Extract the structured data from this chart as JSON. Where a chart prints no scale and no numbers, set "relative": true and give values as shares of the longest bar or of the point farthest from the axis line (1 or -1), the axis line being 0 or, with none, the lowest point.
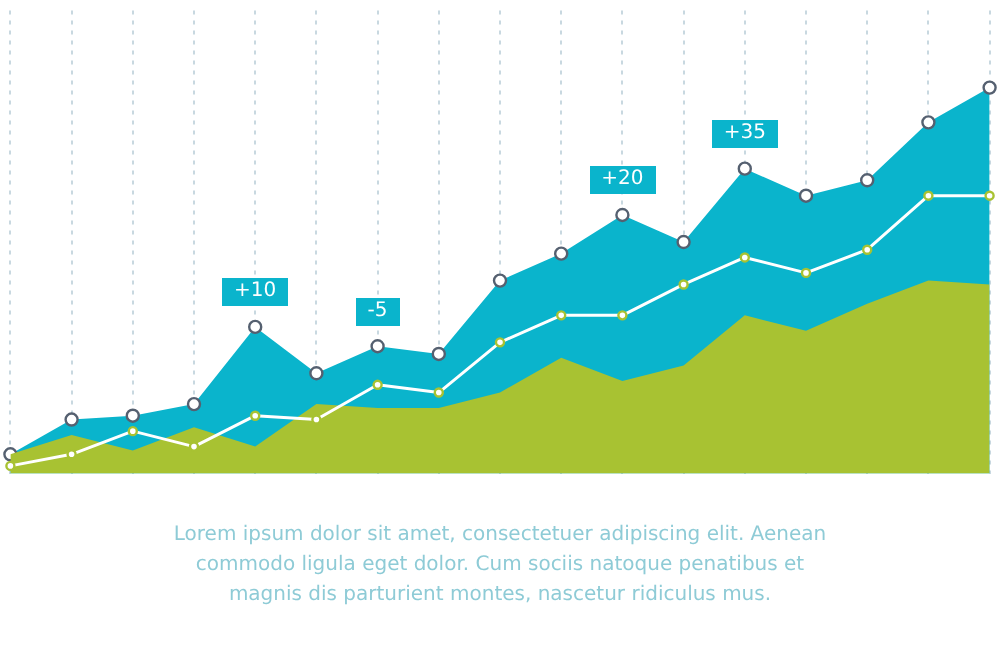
{
  "chart_data": {
    "type": "area",
    "relative": true,
    "grid": "x",
    "legend": false,
    "tick_labels": false,
    "categories": [
      null,
      null,
      null,
      null,
      null,
      null,
      null,
      null,
      null,
      null,
      null,
      null,
      null,
      null,
      null,
      null,
      null
    ],
    "series": [
      {
        "type": "area",
        "color": "#0ab4cc",
        "marker": "circle",
        "values": [
          0.05,
          0.14,
          0.15,
          0.18,
          0.38,
          0.26,
          0.33,
          0.31,
          0.5,
          0.57,
          0.67,
          0.6,
          0.79,
          0.72,
          0.76,
          0.91,
          1
        ]
      },
      {
        "type": "area",
        "color": "#a8c232",
        "marker": "none",
        "values": [
          0.05,
          0.1,
          0.06,
          0.12,
          0.07,
          0.18,
          0.17,
          0.17,
          0.21,
          0.3,
          0.24,
          0.28,
          0.41,
          0.37,
          0.44,
          0.5,
          0.49
        ]
      },
      {
        "type": "line",
        "color": "#ffffff",
        "marker": "circle",
        "values": [
          0.02,
          0.05,
          0.11,
          0.07,
          0.15,
          0.14,
          0.23,
          0.21,
          0.34,
          0.41,
          0.41,
          0.49,
          0.56,
          0.52,
          0.58,
          0.72,
          0.72
        ]
      }
    ],
    "annotations": [
      {
        "text": "+10",
        "y": 0.38
      },
      {
        "text": "-5",
        "y": 0.33
      },
      {
        "text": "+20",
        "y": 0.67
      },
      {
        "text": "+35",
        "y": 0.79
      },
      "Lorem ipsum dolor sit amet, consectetuer adipiscing elit. Aenean commodo ligula eget dolor. Cum sociis natoque penatibus et magnis dis parturient montes, nascetur ridiculus mus."
    ]
  }
}
